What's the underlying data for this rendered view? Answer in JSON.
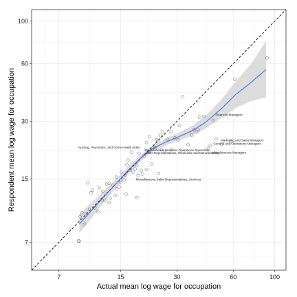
{
  "chart_data": {
    "type": "scatter",
    "scale": "log",
    "xlabel": "Actual mean log wage for occupation",
    "ylabel": "Respondent mean log wage for occupation",
    "xlim": [
      5,
      115
    ],
    "ylim": [
      5,
      115
    ],
    "x_ticks": [
      7,
      15,
      30,
      60,
      100
    ],
    "y_ticks": [
      7,
      15,
      30,
      60,
      100
    ],
    "grid": true,
    "reference_line": "y = x (dashed)",
    "colors": {
      "smooth": "#3366ff",
      "ribbon": "#d6d6d6",
      "points": "#555555",
      "reference": "#000000",
      "grid": "#ebebeb"
    },
    "points": [
      [
        8.9,
        7.1
      ],
      [
        9.0,
        7.1
      ],
      [
        9.3,
        10.0
      ],
      [
        9.1,
        9.5
      ],
      [
        9.6,
        8.7
      ],
      [
        9.8,
        9.9
      ],
      [
        10.2,
        10.4
      ],
      [
        10.0,
        14.3
      ],
      [
        10.4,
        12.7
      ],
      [
        10.6,
        13.1
      ],
      [
        10.9,
        10.6
      ],
      [
        11.3,
        10.1
      ],
      [
        11.5,
        13.5
      ],
      [
        12.0,
        12.9
      ],
      [
        12.3,
        11.6
      ],
      [
        11.9,
        11.6
      ],
      [
        12.6,
        14.1
      ],
      [
        13.0,
        11.3
      ],
      [
        13.2,
        11.9
      ],
      [
        13.0,
        14.2
      ],
      [
        13.6,
        13.9
      ],
      [
        14.0,
        12.3
      ],
      [
        14.3,
        13.3
      ],
      [
        14.2,
        15.3
      ],
      [
        14.7,
        13.6
      ],
      [
        15.0,
        14.4
      ],
      [
        15.1,
        16.3
      ],
      [
        15.6,
        14.8
      ],
      [
        15.9,
        15.7
      ],
      [
        16.2,
        17.8
      ],
      [
        16.4,
        18.8
      ],
      [
        16.0,
        12.5
      ],
      [
        16.9,
        16.7
      ],
      [
        17.4,
        16.3
      ],
      [
        17.2,
        20.7
      ],
      [
        17.9,
        16.9
      ],
      [
        18.3,
        17.6
      ],
      [
        18.8,
        20.4
      ],
      [
        19.3,
        16.6
      ],
      [
        19.6,
        15.9
      ],
      [
        18.3,
        12.0
      ],
      [
        18.6,
        15.6
      ],
      [
        20.0,
        19.8
      ],
      [
        20.6,
        16.8
      ],
      [
        21.2,
        20.8
      ],
      [
        20.6,
        23.2
      ],
      [
        22.0,
        17.9
      ],
      [
        21.4,
        24.9
      ],
      [
        22.6,
        22.0
      ],
      [
        23.3,
        24.0
      ],
      [
        22.9,
        21.9
      ],
      [
        23.7,
        23.8
      ],
      [
        24.4,
        25.3
      ],
      [
        24.8,
        21.3
      ],
      [
        23.9,
        16.0
      ],
      [
        25.1,
        26.4
      ],
      [
        25.8,
        20.6
      ],
      [
        26.7,
        24.2
      ],
      [
        27.9,
        26.4
      ],
      [
        28.0,
        21.3
      ],
      [
        29.2,
        24.6
      ],
      [
        30.4,
        24.0
      ],
      [
        30.9,
        28.5
      ],
      [
        32.2,
        40.3
      ],
      [
        34.4,
        22.6
      ],
      [
        36.0,
        25.4
      ],
      [
        37.0,
        27.1
      ],
      [
        38.1,
        26.4
      ],
      [
        39.6,
        31.5
      ],
      [
        39.0,
        27.1
      ],
      [
        41.8,
        31.8
      ],
      [
        44.1,
        21.6
      ],
      [
        45.2,
        22.4
      ],
      [
        46.8,
        30.3
      ],
      [
        48.5,
        24.3
      ],
      [
        52.1,
        22.8
      ],
      [
        58.1,
        23.5
      ],
      [
        61.3,
        49.7
      ],
      [
        91.0,
        64.3
      ]
    ],
    "smooth": {
      "x": [
        9.0,
        10.5,
        12.0,
        14.0,
        16.5,
        19.0,
        22.0,
        26.0,
        30.0,
        36.0,
        43.0,
        52.0,
        62.0,
        75.0,
        90.0
      ],
      "y": [
        8.7,
        10.3,
        11.9,
        14.0,
        16.7,
        19.1,
        21.5,
        23.3,
        24.7,
        26.7,
        29.8,
        35.0,
        41.5,
        48.0,
        56.0
      ],
      "lower": [
        7.8,
        9.4,
        11.1,
        13.3,
        16.0,
        18.4,
        20.7,
        22.4,
        23.6,
        25.2,
        27.6,
        31.2,
        35.3,
        38.3,
        40.0
      ],
      "upper": [
        9.8,
        11.3,
        12.8,
        14.8,
        17.5,
        19.8,
        22.3,
        24.3,
        25.9,
        28.3,
        32.2,
        39.2,
        48.5,
        60.1,
        79.0
      ]
    },
    "annotations": [
      {
        "text": "Financial Managers",
        "x": 57.0,
        "y": 32.0,
        "size": 4.5
      },
      {
        "text": "Marketing and Sales Managers",
        "x": 67.0,
        "y": 23.6,
        "size": 4.5
      },
      {
        "text": "General and Operations Managers",
        "x": 63.0,
        "y": 22.6,
        "size": 4.5
      },
      {
        "text": "Miscellaneous Managers",
        "x": 57.0,
        "y": 20.3,
        "size": 4.5
      },
      {
        "text": "Nursing, Psychiatric, and Home Health Aides",
        "x": 13.0,
        "y": 21.6,
        "size": 4.5
      },
      {
        "text": "Miscellaneous Business Operations Specialists",
        "x": 30.0,
        "y": 20.9,
        "size": 4.5
      },
      {
        "text": "Sales Representatives, Wholesale and Manufacturing",
        "x": 32.0,
        "y": 20.2,
        "size": 4.5
      },
      {
        "text": "Miscellaneous Sales Representatives, Services",
        "x": 27.0,
        "y": 14.7,
        "size": 4.5
      }
    ]
  }
}
